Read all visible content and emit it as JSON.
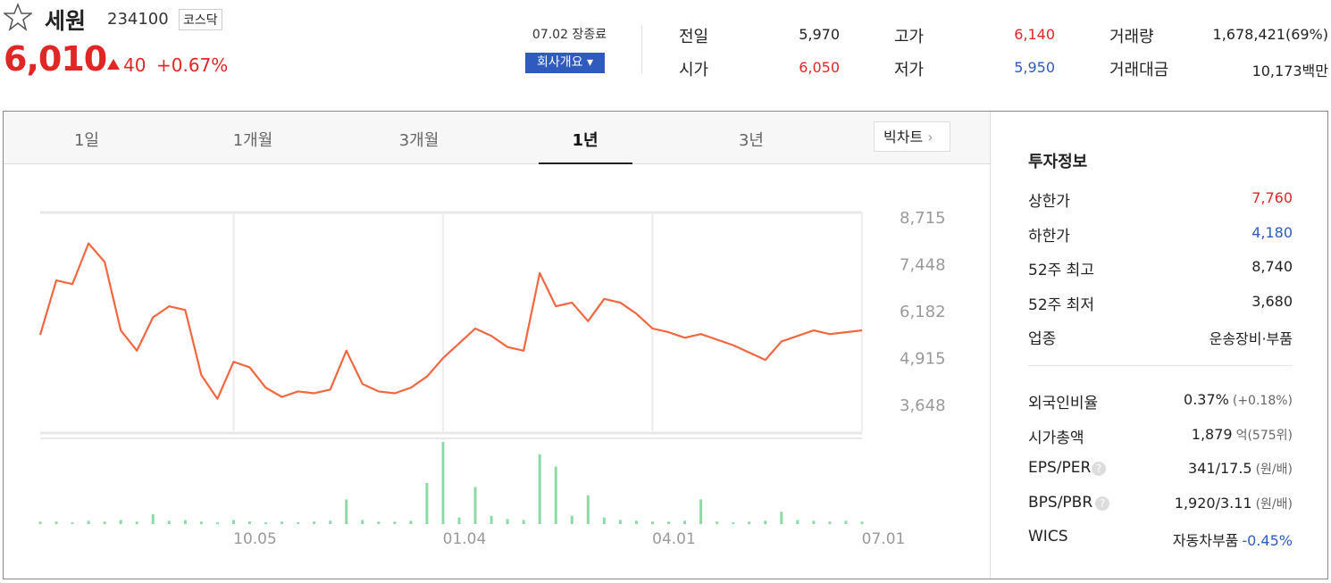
{
  "header": {
    "name": "세원",
    "code": "234100",
    "market": "코스닥",
    "price": "6,010",
    "change": "40",
    "change_rate": "+0.67%",
    "status": "07.02 장종료",
    "company_button": "회사개요"
  },
  "stats": [
    {
      "label": "전일",
      "value": "5,970"
    },
    {
      "label": "시가",
      "value": "6,050"
    },
    {
      "label": "고가",
      "value": "6,140"
    },
    {
      "label": "저가",
      "value": "5,950"
    },
    {
      "label": "거래량",
      "value": "1,678,421(69%)"
    },
    {
      "label": "거래대금",
      "value": "10,173백만"
    }
  ],
  "tabs": [
    "1일",
    "1개월",
    "3개월",
    "1년",
    "3년"
  ],
  "big_chart": "빅차트",
  "chart_data": {
    "type": "line",
    "categories": [
      "10.05",
      "01.04",
      "04.01",
      "07.01"
    ],
    "category_index": null,
    "x": [
      null,
      null,
      null,
      null,
      null,
      null,
      null,
      null,
      null,
      null,
      null,
      null,
      "10.05",
      null,
      null,
      null,
      null,
      null,
      null,
      null,
      null,
      null,
      null,
      null,
      null,
      "01.04",
      null,
      null,
      null,
      null,
      null,
      null,
      null,
      null,
      null,
      null,
      null,
      null,
      "04.01",
      null,
      null,
      null,
      null,
      null,
      null,
      null,
      null,
      null,
      null,
      null,
      null,
      "07.01"
    ],
    "ylim": [
      2924,
      8836
    ],
    "yticks": [
      {
        "value": 8715,
        "label": "8,715"
      },
      {
        "value": 7448,
        "label": "7,448"
      },
      {
        "value": 6182,
        "label": "6,182"
      },
      {
        "value": 4915,
        "label": "4,915"
      },
      {
        "value": 3648,
        "label": "3,648"
      }
    ],
    "y2lim": [
      0,
      100
    ],
    "series": [
      {
        "color": "#f26640",
        "values": [
          5530,
          7000,
          6900,
          8000,
          7500,
          5650,
          5100,
          6000,
          6300,
          6200,
          4440,
          3800,
          4800,
          4650,
          4100,
          3850,
          4000,
          3950,
          4050,
          5100,
          4200,
          4000,
          3950,
          4100,
          4400,
          4900,
          5300,
          5700,
          5500,
          5200,
          5100,
          7200,
          6300,
          6400,
          5900,
          6500,
          6400,
          6100,
          5700,
          5600,
          5450,
          5550,
          5400,
          5250,
          5050,
          4850,
          5350,
          5500,
          5650,
          5550,
          5600,
          5650
        ]
      },
      {
        "type": "bar",
        "axis": "y2",
        "color": "#8cdba6",
        "values": [
          3,
          3,
          2,
          4,
          3,
          5,
          3,
          12,
          4,
          5,
          3,
          2,
          5,
          3,
          2,
          3,
          2,
          3,
          4,
          30,
          5,
          3,
          3,
          4,
          50,
          100,
          8,
          45,
          10,
          6,
          5,
          85,
          70,
          10,
          35,
          8,
          5,
          4,
          3,
          3,
          4,
          30,
          3,
          2,
          3,
          4,
          15,
          5,
          4,
          3,
          4,
          3
        ]
      }
    ]
  },
  "info": {
    "title": "투자정보",
    "rows": [
      {
        "label": "상한가",
        "value": "7,760"
      },
      {
        "label": "하한가",
        "value": "4,180"
      },
      {
        "label": "52주 최고",
        "value": "8,740"
      },
      {
        "label": "52주 최저",
        "value": "3,680"
      },
      {
        "label": "업종",
        "value": "운송장비·부품"
      }
    ],
    "rows2": [
      {
        "label": "외국인비율",
        "value": "0.37%",
        "extra": "(+0.18%)"
      },
      {
        "label": "시가총액",
        "value": "1,879",
        "extra": "억(575위)"
      },
      {
        "label": "EPS/PER",
        "value": "341/17.5",
        "extra": "(원/배)"
      },
      {
        "label": "BPS/PBR",
        "value": "1,920/3.11",
        "extra": "(원/배)"
      },
      {
        "label": "WICS",
        "value": "자동차부품",
        "extra": "-0.45%"
      }
    ]
  }
}
